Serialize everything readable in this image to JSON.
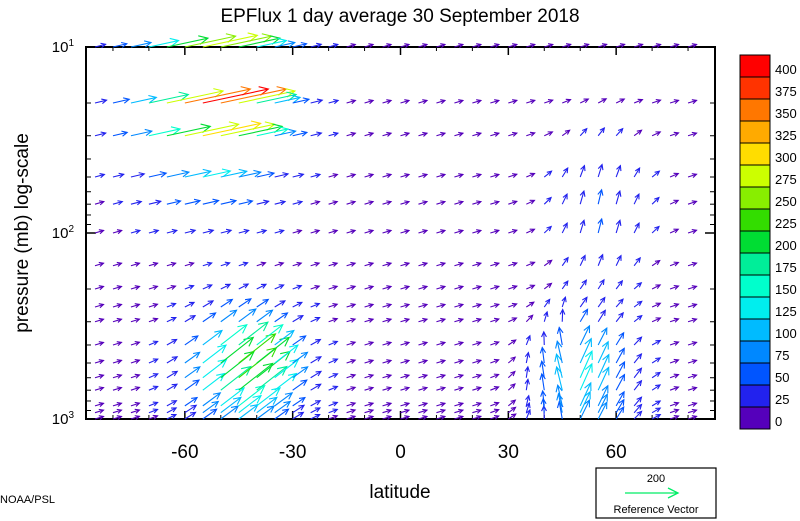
{
  "chart_data": {
    "type": "vector_field",
    "title": "EPFlux  1 day average  30 September 2018",
    "xlabel": "latitude",
    "ylabel": "pressure (mb)  log-scale",
    "x_ticks": [
      -60,
      -30,
      0,
      30,
      60
    ],
    "xlim": [
      -87.5,
      87.5
    ],
    "y_scale": "log",
    "ylim": [
      1000,
      10
    ],
    "y_ticks": [
      {
        "value": 10,
        "base": "10",
        "exp": "1"
      },
      {
        "value": 100,
        "base": "10",
        "exp": "2"
      },
      {
        "value": 1000,
        "base": "10",
        "exp": "3"
      }
    ],
    "pressure_levels": [
      1000,
      925,
      850,
      700,
      600,
      500,
      400,
      300,
      250,
      200,
      150,
      100,
      70,
      50,
      30,
      20,
      10
    ],
    "latitudes": [
      -85,
      -80,
      -75,
      -70,
      -65,
      -60,
      -55,
      -50,
      -45,
      -40,
      -35,
      -30,
      -25,
      -20,
      -15,
      -10,
      -5,
      0,
      5,
      10,
      15,
      20,
      25,
      30,
      35,
      40,
      45,
      50,
      55,
      60,
      65,
      70,
      75,
      80,
      85
    ],
    "colorbar": {
      "labels": [
        "400",
        "375",
        "350",
        "325",
        "300",
        "275",
        "250",
        "225",
        "200",
        "175",
        "150",
        "125",
        "100",
        "75",
        "50",
        "25",
        "0"
      ],
      "colors": [
        "#ff0000",
        "#ff3300",
        "#ff7700",
        "#ffaa00",
        "#ffdd00",
        "#ccff00",
        "#88ee00",
        "#33dd00",
        "#00dd33",
        "#00ee99",
        "#00ffcc",
        "#00eeee",
        "#00bbff",
        "#0088ff",
        "#0055ff",
        "#2222ee",
        "#5500bb"
      ]
    },
    "reference_vector": {
      "value": "200",
      "label": "Reference Vector"
    }
  },
  "credit": "NOAA/PSL"
}
